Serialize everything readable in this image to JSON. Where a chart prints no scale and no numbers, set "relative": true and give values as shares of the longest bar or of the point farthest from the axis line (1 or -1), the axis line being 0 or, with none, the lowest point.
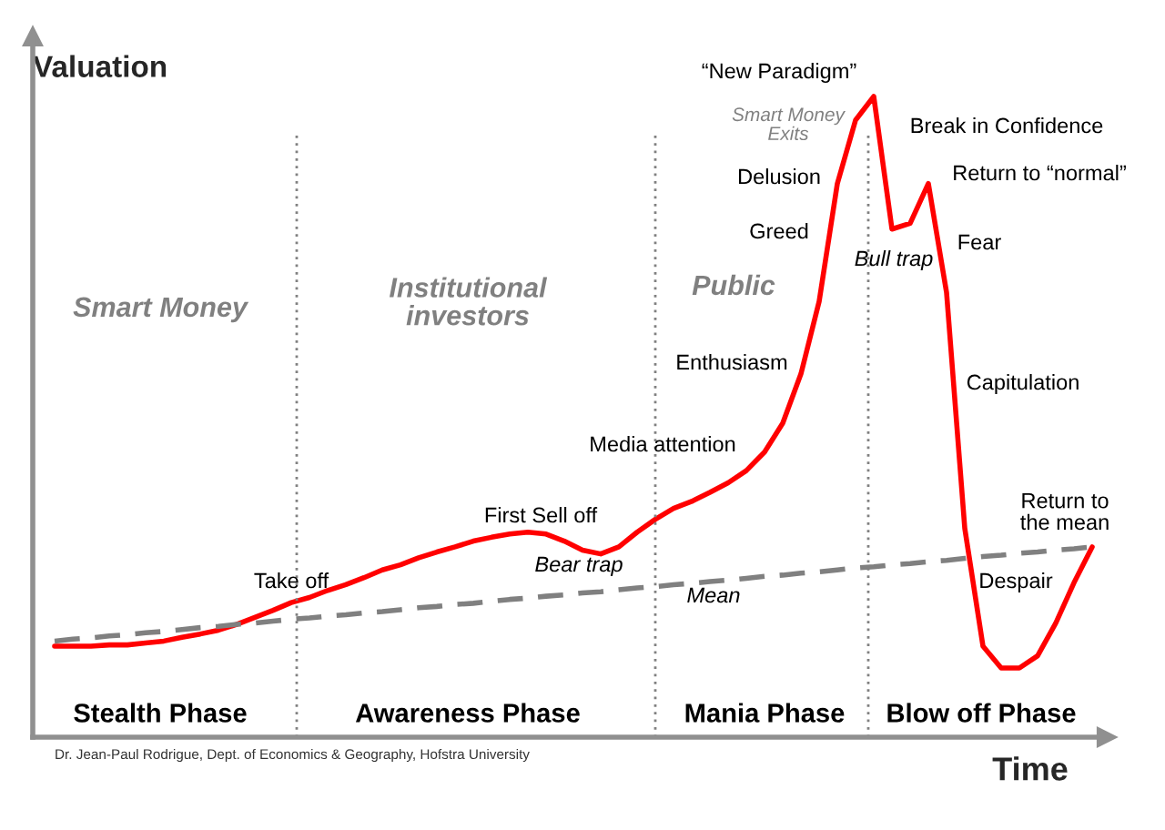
{
  "chart_data": {
    "type": "line",
    "relative": true,
    "xlabel": "Time",
    "ylabel": "Valuation",
    "categories": [
      null,
      null,
      null,
      null,
      null,
      null,
      null,
      null,
      null,
      null,
      null,
      null,
      null,
      null,
      null,
      null,
      null,
      null,
      null,
      null,
      null,
      null,
      null,
      null,
      null,
      null,
      null,
      null,
      null,
      null,
      null,
      null,
      null,
      null,
      null,
      null,
      null,
      null,
      null,
      null,
      null,
      null,
      null,
      null,
      null,
      null,
      null,
      null,
      null,
      null,
      null,
      null,
      null,
      null,
      null,
      null,
      null,
      null
    ],
    "series": [
      {
        "color": "#ff0000",
        "line_style": "solid",
        "values": [
          0.142,
          0.142,
          0.142,
          0.144,
          0.144,
          0.147,
          0.15,
          0.156,
          0.161,
          0.167,
          0.176,
          0.187,
          0.198,
          0.21,
          0.218,
          0.229,
          0.238,
          0.249,
          0.261,
          0.269,
          0.28,
          0.289,
          0.297,
          0.306,
          0.312,
          0.317,
          0.32,
          0.317,
          0.306,
          0.292,
          0.286,
          0.297,
          0.32,
          0.34,
          0.357,
          0.368,
          0.382,
          0.397,
          0.416,
          0.445,
          0.49,
          0.567,
          0.68,
          0.864,
          0.963,
          1.0,
          0.793,
          0.802,
          0.864,
          0.694,
          0.326,
          0.142,
          0.108,
          0.108,
          0.127,
          0.178,
          0.241,
          0.297
        ]
      },
      {
        "color": "#808080",
        "line_style": "dashed",
        "values": [
          0.15,
          0.153,
          0.155,
          0.158,
          0.16,
          0.163,
          0.165,
          0.168,
          0.171,
          0.173,
          0.176,
          0.178,
          0.181,
          0.184,
          0.186,
          0.189,
          0.191,
          0.194,
          0.196,
          0.199,
          0.202,
          0.204,
          0.207,
          0.209,
          0.212,
          0.215,
          0.217,
          0.22,
          0.222,
          0.225,
          0.227,
          0.23,
          0.233,
          0.235,
          0.238,
          0.24,
          0.243,
          0.245,
          0.248,
          0.251,
          0.253,
          0.256,
          0.258,
          0.261,
          0.264,
          0.266,
          0.269,
          0.271,
          0.274,
          0.276,
          0.279,
          0.282,
          0.284,
          0.287,
          0.289,
          0.292,
          0.294,
          0.297
        ]
      }
    ],
    "annotations": [
      "Smart Money",
      "Institutional\ninvestors",
      "Public",
      "Stealth Phase",
      "Awareness Phase",
      "Mania Phase",
      "Blow off Phase",
      "Take off",
      "First Sell off",
      "Bear trap",
      "Media attention",
      "Enthusiasm",
      "Greed",
      "Delusion",
      "“New Paradigm”",
      "Smart Money\nExits",
      "Break in Confidence",
      "Return to “normal”",
      "Bull trap",
      "Fear",
      "Capitulation",
      "Return to\nthe mean",
      "Despair",
      "Mean",
      "Dr. Jean-Paul Rodrigue, Dept. of Economics & Geography, Hofstra University"
    ],
    "grid": false,
    "legend": false
  }
}
